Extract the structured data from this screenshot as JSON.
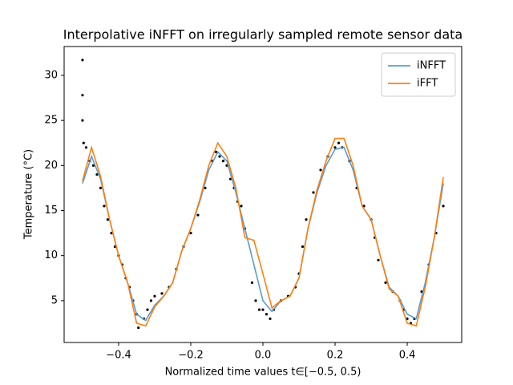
{
  "chart_data": {
    "type": "line",
    "title": "Interpolative iNFFT on irregularly sampled remote sensor data",
    "xlabel": "Normalized time values t∈[−0.5, 0.5)",
    "ylabel": "Temperature (°C)",
    "xlim": [
      -0.551,
      0.551
    ],
    "ylim": [
      0.36,
      33.2
    ],
    "xticks": [
      {
        "value": -0.4,
        "label": "−0.4"
      },
      {
        "value": -0.2,
        "label": "−0.2"
      },
      {
        "value": 0,
        "label": "0.0"
      },
      {
        "value": 0.2,
        "label": "0.2"
      },
      {
        "value": 0.4,
        "label": "0.4"
      }
    ],
    "yticks": [
      5,
      10,
      15,
      20,
      25,
      30
    ],
    "legend": "upper right",
    "points": {
      "color": "#000000",
      "x": [
        -0.5,
        -0.5,
        -0.5,
        -0.497,
        -0.49,
        -0.48,
        -0.47,
        -0.46,
        -0.45,
        -0.44,
        -0.43,
        -0.42,
        -0.41,
        -0.4,
        -0.39,
        -0.38,
        -0.37,
        -0.36,
        -0.35,
        -0.345,
        -0.33,
        -0.32,
        -0.31,
        -0.3,
        -0.28,
        -0.26,
        -0.24,
        -0.22,
        -0.2,
        -0.18,
        -0.16,
        -0.14,
        -0.13,
        -0.12,
        -0.11,
        -0.1,
        -0.09,
        -0.08,
        -0.07,
        -0.06,
        -0.05,
        -0.03,
        -0.02,
        -0.01,
        0.0,
        0.01,
        0.02,
        0.03,
        0.05,
        0.07,
        0.09,
        0.1,
        0.11,
        0.12,
        0.14,
        0.16,
        0.18,
        0.2,
        0.21,
        0.22,
        0.24,
        0.26,
        0.28,
        0.3,
        0.31,
        0.32,
        0.34,
        0.36,
        0.38,
        0.39,
        0.4,
        0.41,
        0.42,
        0.44,
        0.46,
        0.48,
        0.5
      ],
      "y": [
        31.7,
        27.8,
        25,
        22.5,
        22,
        20.5,
        20,
        19,
        17.5,
        15.5,
        14,
        12.5,
        11,
        10,
        9,
        7.5,
        6.5,
        5,
        3.5,
        2,
        3,
        4,
        5,
        5.5,
        5.8,
        6.5,
        8.5,
        11,
        12.5,
        14.5,
        17.5,
        20.5,
        21.5,
        21,
        20.5,
        20,
        18.5,
        17.5,
        16,
        15.5,
        13,
        7,
        5,
        4,
        4,
        3.5,
        3,
        4,
        5,
        5.5,
        6.5,
        8,
        11,
        14,
        17,
        19.5,
        21,
        22,
        22.5,
        22,
        20.5,
        17.5,
        15.5,
        14,
        12,
        9.5,
        7,
        6,
        5,
        4,
        3,
        2.5,
        3,
        6,
        9,
        12.5,
        15.5
      ]
    },
    "x": [
      -0.5,
      -0.475,
      -0.45,
      -0.425,
      -0.4,
      -0.375,
      -0.35,
      -0.325,
      -0.3,
      -0.275,
      -0.25,
      -0.225,
      -0.2,
      -0.175,
      -0.15,
      -0.125,
      -0.1,
      -0.075,
      -0.05,
      -0.025,
      0,
      0.025,
      0.05,
      0.075,
      0.1,
      0.125,
      0.15,
      0.175,
      0.2,
      0.225,
      0.25,
      0.275,
      0.3,
      0.325,
      0.35,
      0.375,
      0.4,
      0.425,
      0.45,
      0.475,
      0.5
    ],
    "series": [
      {
        "name": "iNFFT",
        "color": "#5b9bd0",
        "values": [
          18,
          21,
          18.5,
          14,
          10,
          7,
          3.5,
          2.8,
          4.5,
          5.5,
          7,
          10.5,
          13,
          16,
          19.5,
          21.5,
          20.5,
          17,
          13,
          9,
          5,
          3.8,
          5,
          5.5,
          7.5,
          13,
          17,
          20,
          21.8,
          22,
          19.5,
          15.5,
          14,
          10,
          6.5,
          5.5,
          3.5,
          3,
          7,
          12,
          18
        ]
      },
      {
        "name": "iFFT",
        "color": "#ff7f0e",
        "values": [
          18.3,
          22,
          18.8,
          14,
          10,
          7,
          2.5,
          2.2,
          4.3,
          5.5,
          7,
          10.5,
          13,
          16.2,
          20,
          22.5,
          21,
          17.5,
          12,
          11.7,
          8,
          4.2,
          5,
          5.5,
          7.5,
          13,
          17.3,
          20.5,
          23,
          23,
          20,
          15.5,
          14,
          10,
          6.3,
          5.5,
          2.5,
          2.2,
          6.5,
          12,
          18.7
        ]
      }
    ]
  }
}
